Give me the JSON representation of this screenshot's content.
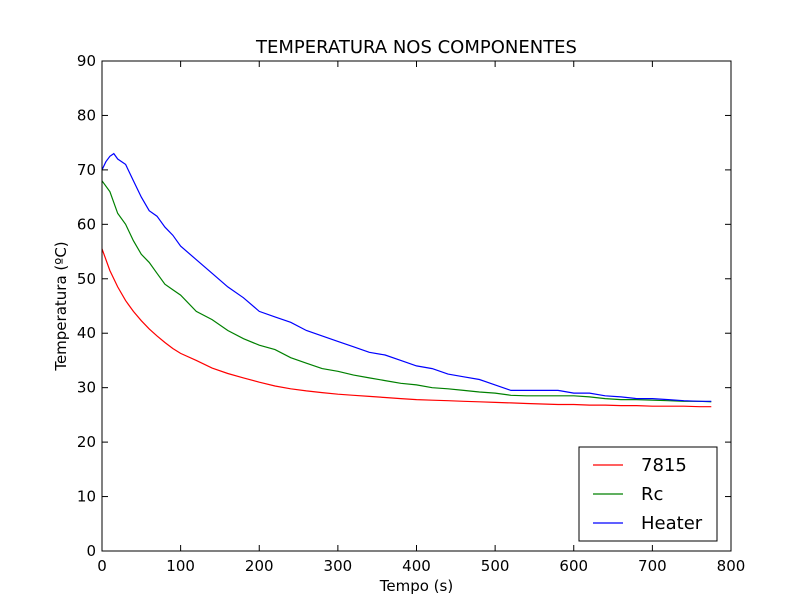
{
  "chart_data": {
    "type": "line",
    "title": "TEMPERATURA NOS COMPONENTES",
    "xlabel": "Tempo (s)",
    "ylabel": "Temperatura (ºC)",
    "xlim": [
      0,
      800
    ],
    "ylim": [
      0,
      90
    ],
    "xticks": [
      0,
      100,
      200,
      300,
      400,
      500,
      600,
      700,
      800
    ],
    "yticks": [
      0,
      10,
      20,
      30,
      40,
      50,
      60,
      70,
      80,
      90
    ],
    "grid": false,
    "legend_position": "bottom-right",
    "series": [
      {
        "name": "7815",
        "color": "#ff0000",
        "x": [
          0,
          10,
          20,
          30,
          40,
          50,
          60,
          70,
          80,
          90,
          100,
          120,
          140,
          160,
          180,
          200,
          220,
          240,
          260,
          280,
          300,
          320,
          340,
          360,
          380,
          400,
          420,
          440,
          460,
          480,
          500,
          520,
          540,
          560,
          580,
          600,
          620,
          640,
          660,
          680,
          700,
          720,
          740,
          760,
          775
        ],
        "y": [
          55.5,
          51.5,
          48.5,
          46,
          44,
          42.3,
          40.8,
          39.5,
          38.3,
          37.2,
          36.3,
          35,
          33.6,
          32.6,
          31.8,
          31,
          30.3,
          29.8,
          29.4,
          29.1,
          28.8,
          28.6,
          28.4,
          28.2,
          28,
          27.8,
          27.7,
          27.6,
          27.5,
          27.4,
          27.3,
          27.2,
          27.1,
          27,
          26.9,
          26.9,
          26.8,
          26.8,
          26.7,
          26.7,
          26.6,
          26.6,
          26.6,
          26.5,
          26.5
        ]
      },
      {
        "name": "Rc",
        "color": "#008000",
        "x": [
          0,
          10,
          20,
          30,
          40,
          50,
          60,
          70,
          80,
          90,
          100,
          120,
          140,
          160,
          180,
          200,
          220,
          240,
          260,
          280,
          300,
          320,
          340,
          360,
          380,
          400,
          420,
          440,
          460,
          480,
          500,
          520,
          540,
          560,
          580,
          600,
          620,
          640,
          660,
          680,
          700,
          720,
          740,
          760,
          775
        ],
        "y": [
          68,
          66,
          62,
          60,
          57,
          54.5,
          53,
          51,
          49,
          48,
          47,
          44,
          42.5,
          40.5,
          39,
          37.8,
          37,
          35.5,
          34.5,
          33.5,
          33,
          32.3,
          31.8,
          31.3,
          30.8,
          30.5,
          30,
          29.8,
          29.5,
          29.2,
          29,
          28.6,
          28.5,
          28.5,
          28.5,
          28.5,
          28.3,
          28,
          27.8,
          27.8,
          27.7,
          27.6,
          27.5,
          27.5,
          27.4
        ]
      },
      {
        "name": "Heater",
        "color": "#0000ff",
        "x": [
          0,
          5,
          10,
          15,
          20,
          25,
          30,
          40,
          50,
          60,
          70,
          80,
          90,
          100,
          120,
          140,
          160,
          180,
          200,
          220,
          240,
          260,
          280,
          300,
          320,
          340,
          360,
          380,
          400,
          420,
          440,
          460,
          480,
          500,
          520,
          540,
          560,
          580,
          600,
          620,
          640,
          660,
          680,
          700,
          720,
          740,
          760,
          775
        ],
        "y": [
          70,
          71.5,
          72.5,
          73,
          72,
          71.5,
          71,
          68,
          65,
          62.5,
          61.5,
          59.5,
          58,
          56,
          53.5,
          51,
          48.5,
          46.5,
          44,
          43,
          42,
          40.5,
          39.5,
          38.5,
          37.5,
          36.5,
          36,
          35,
          34,
          33.5,
          32.5,
          32,
          31.5,
          30.5,
          29.5,
          29.5,
          29.5,
          29.5,
          29,
          29,
          28.5,
          28.3,
          28,
          28,
          27.8,
          27.6,
          27.5,
          27.5
        ]
      }
    ]
  }
}
